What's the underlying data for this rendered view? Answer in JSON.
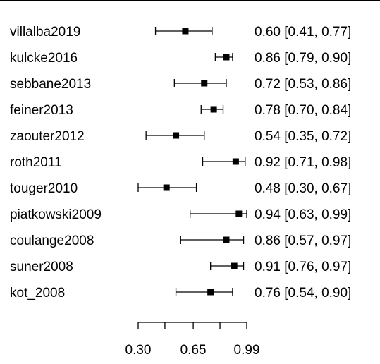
{
  "chart_data": {
    "type": "forest",
    "title": "",
    "xlabel": "",
    "xlim": [
      0.3,
      0.99
    ],
    "x_ticks": [
      0.3,
      0.47,
      0.65,
      0.82,
      0.99
    ],
    "x_tick_labels": [
      {
        "value": 0.3,
        "text": "0.30"
      },
      {
        "value": 0.65,
        "text": "0.65"
      },
      {
        "value": 0.99,
        "text": "0.99"
      }
    ],
    "studies": [
      {
        "name": "villalba2019",
        "estimate": 0.6,
        "lower": 0.41,
        "upper": 0.77,
        "ci_text": "0.60 [0.41, 0.77]"
      },
      {
        "name": "kulcke2016",
        "estimate": 0.86,
        "lower": 0.79,
        "upper": 0.9,
        "ci_text": "0.86 [0.79, 0.90]"
      },
      {
        "name": "sebbane2013",
        "estimate": 0.72,
        "lower": 0.53,
        "upper": 0.86,
        "ci_text": "0.72 [0.53, 0.86]"
      },
      {
        "name": "feiner2013",
        "estimate": 0.78,
        "lower": 0.7,
        "upper": 0.84,
        "ci_text": "0.78 [0.70, 0.84]"
      },
      {
        "name": "zaouter2012",
        "estimate": 0.54,
        "lower": 0.35,
        "upper": 0.72,
        "ci_text": "0.54 [0.35, 0.72]"
      },
      {
        "name": "roth2011",
        "estimate": 0.92,
        "lower": 0.71,
        "upper": 0.98,
        "ci_text": "0.92 [0.71, 0.98]"
      },
      {
        "name": "touger2010",
        "estimate": 0.48,
        "lower": 0.3,
        "upper": 0.67,
        "ci_text": "0.48 [0.30, 0.67]"
      },
      {
        "name": "piatkowski2009",
        "estimate": 0.94,
        "lower": 0.63,
        "upper": 0.99,
        "ci_text": "0.94 [0.63, 0.99]"
      },
      {
        "name": "coulange2008",
        "estimate": 0.86,
        "lower": 0.57,
        "upper": 0.97,
        "ci_text": "0.86 [0.57, 0.97]"
      },
      {
        "name": "suner2008",
        "estimate": 0.91,
        "lower": 0.76,
        "upper": 0.97,
        "ci_text": "0.91 [0.76, 0.97]"
      },
      {
        "name": "kot_2008",
        "estimate": 0.76,
        "lower": 0.54,
        "upper": 0.9,
        "ci_text": "0.76 [0.54, 0.90]"
      }
    ],
    "grid": false,
    "legend": "none",
    "colors": {
      "line": "#000000",
      "marker": "#000000",
      "background": "#ffffff"
    }
  }
}
